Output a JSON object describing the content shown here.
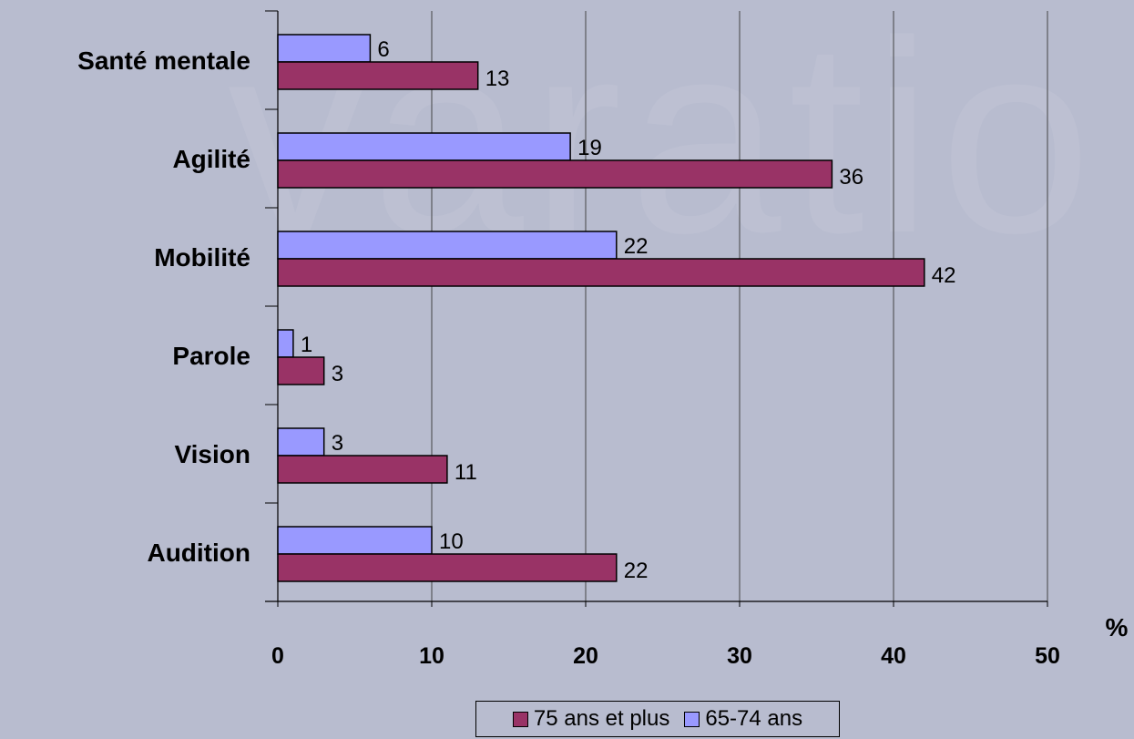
{
  "chart_data": {
    "type": "bar",
    "orientation": "horizontal",
    "categories": [
      "Santé mentale",
      "Agilité",
      "Mobilité",
      "Parole",
      "Vision",
      "Audition"
    ],
    "series": [
      {
        "name": "65-74 ans",
        "values": [
          6,
          19,
          22,
          1,
          3,
          10
        ],
        "color": "#9999ff"
      },
      {
        "name": "75 ans et plus",
        "values": [
          13,
          36,
          42,
          3,
          11,
          22
        ],
        "color": "#993366"
      }
    ],
    "data_labels": {
      "65-74 ans": [
        "6",
        "19",
        "22",
        "1",
        "3",
        "10"
      ],
      "75 ans et plus": [
        "13",
        "36",
        "42",
        "3",
        "11",
        "22"
      ]
    },
    "xlim": [
      0,
      50
    ],
    "xticks": [
      "0",
      "10",
      "20",
      "30",
      "40",
      "50"
    ],
    "xunit": "%",
    "grid": "vertical",
    "legend_position": "bottom",
    "legend_order": [
      "75 ans et plus",
      "65-74 ans"
    ]
  }
}
